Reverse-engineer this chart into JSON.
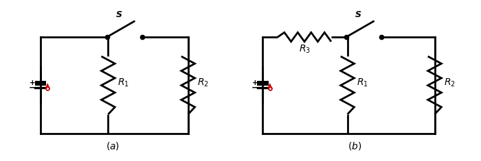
{
  "bg_color": "#ffffff",
  "line_color": "#000000",
  "red_color": "#cc0000",
  "lw": 2.0,
  "figsize": [
    7.0,
    2.35
  ],
  "dpi": 100
}
